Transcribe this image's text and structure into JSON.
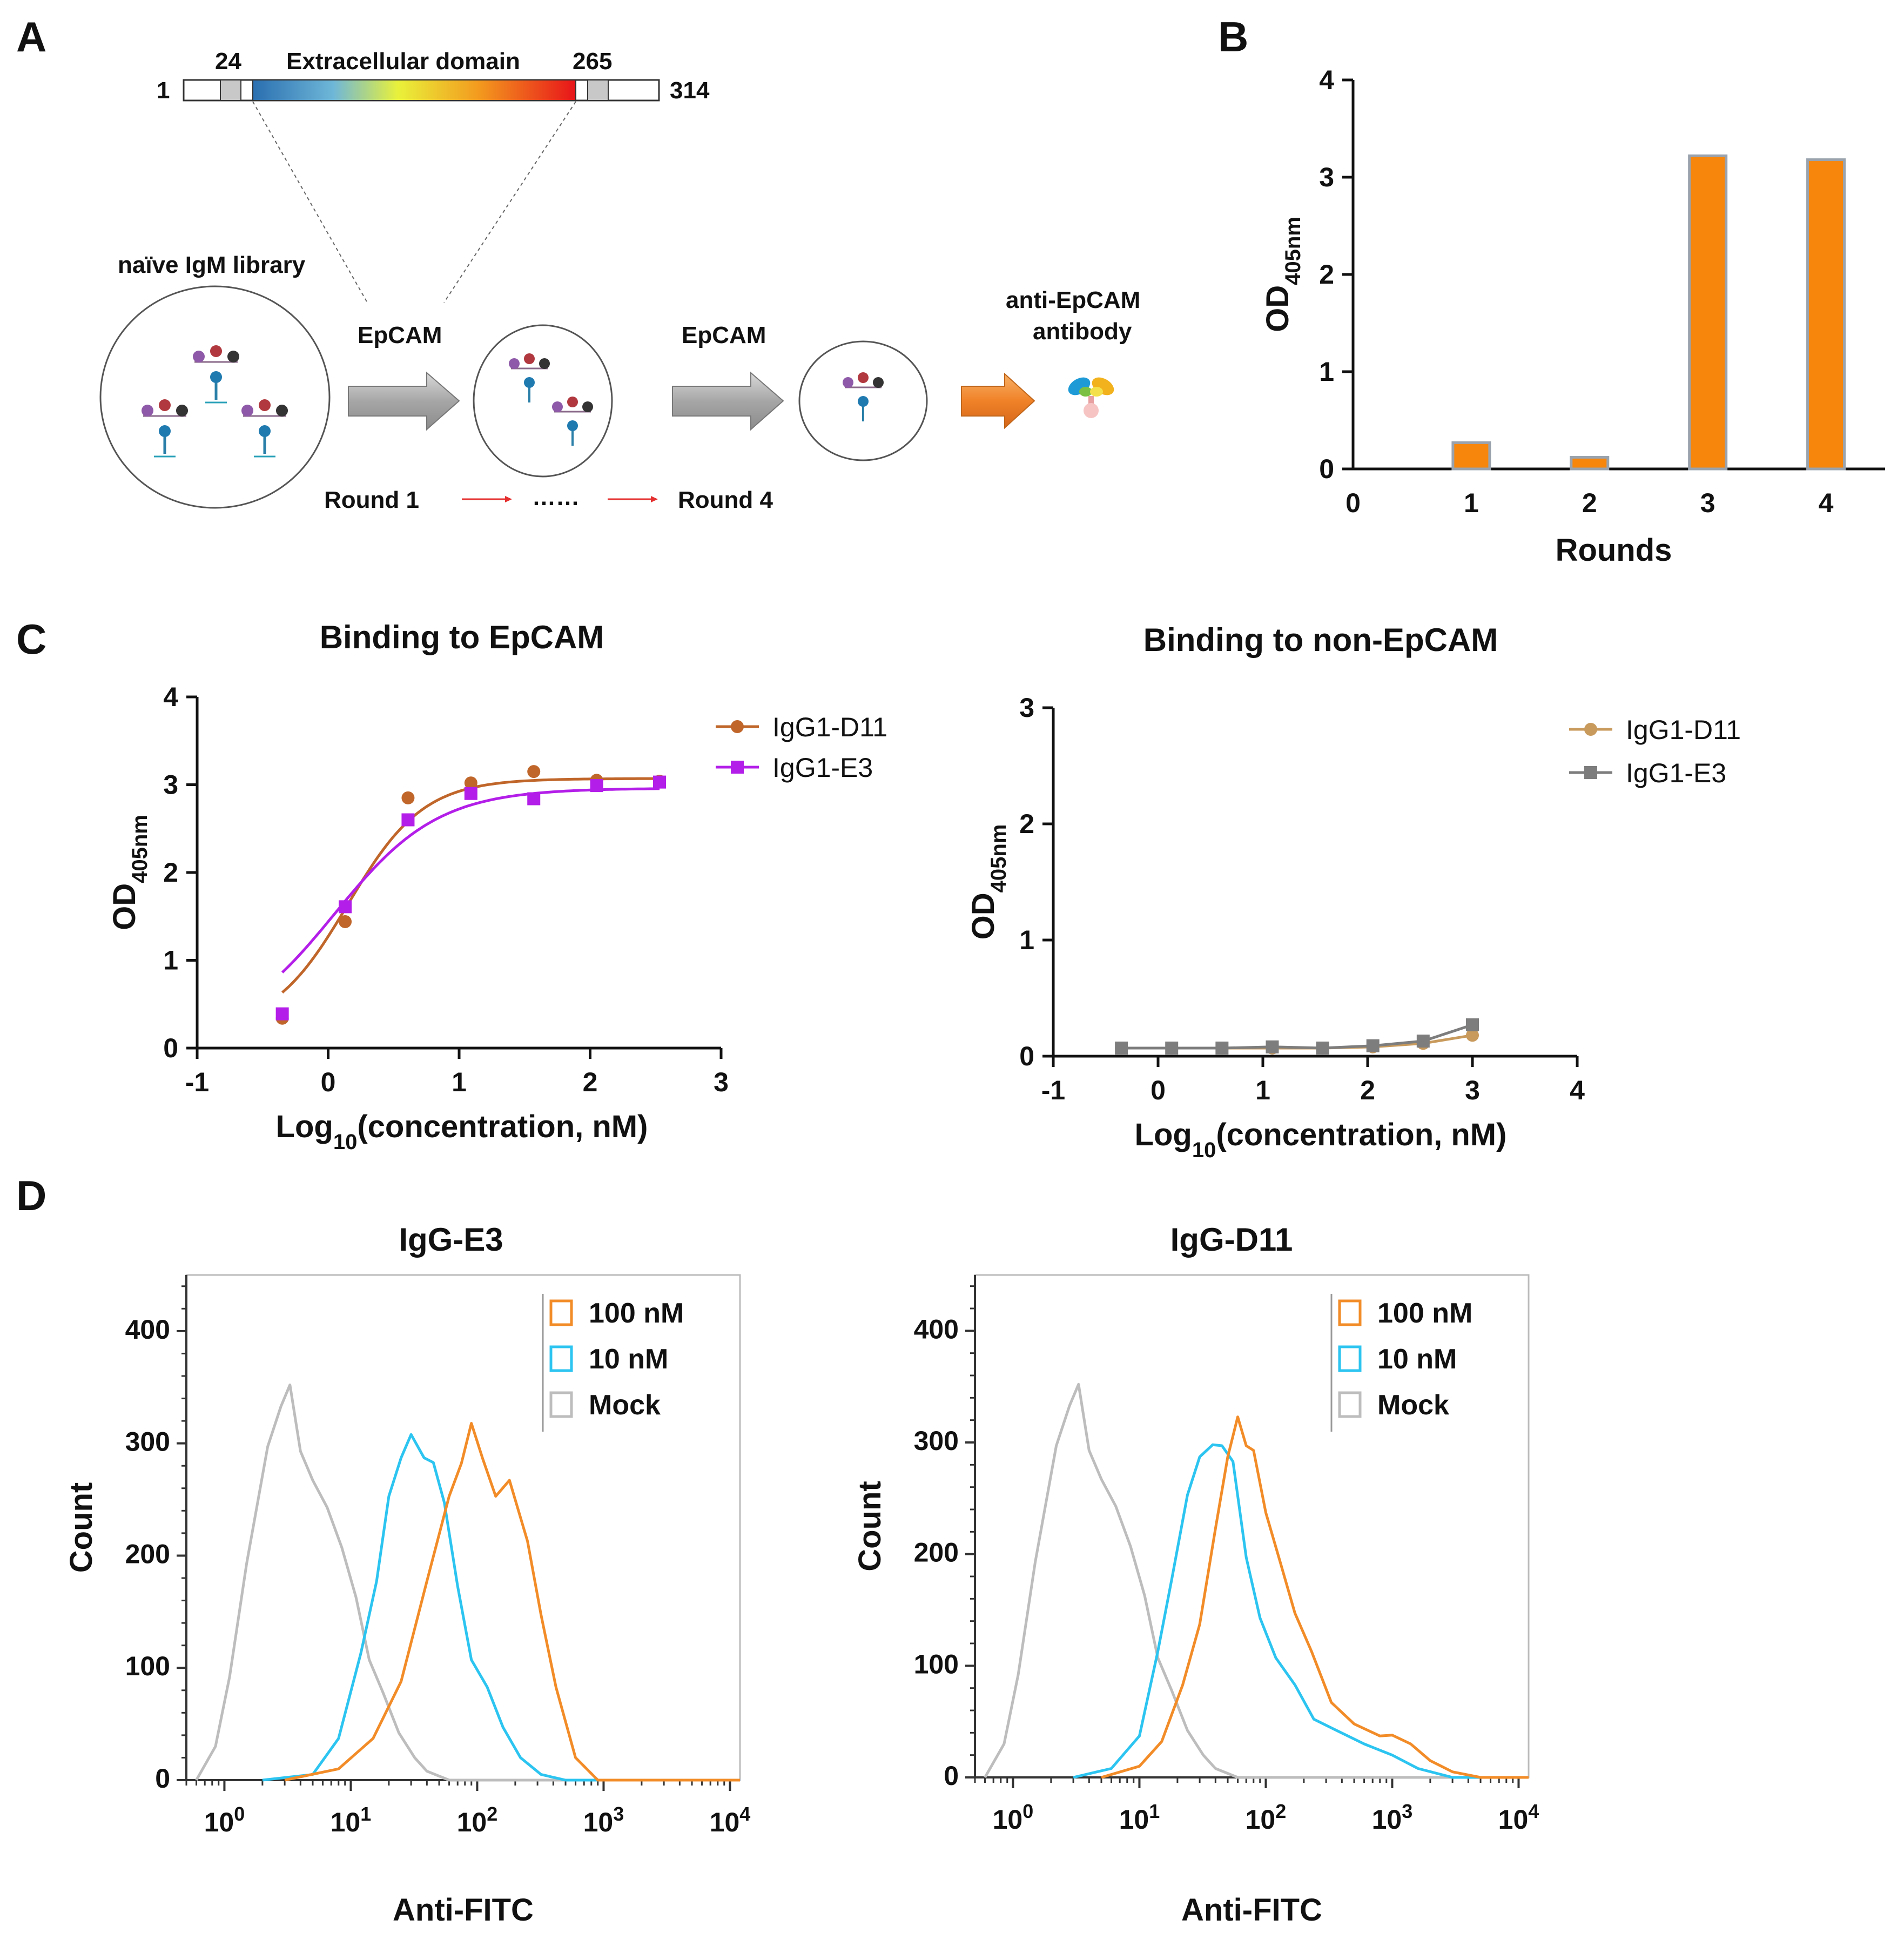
{
  "panels": {
    "A": {
      "label": "A",
      "pos_start": "1",
      "pos_24": "24",
      "domain_label": "Extracellular domain",
      "pos_265": "265",
      "pos_end": "314",
      "library_label": "naïve IgM library",
      "arrow1_label": "EpCAM",
      "arrow2_label": "EpCAM",
      "product_label_1": "anti-EpCAM",
      "product_label_2": "antibody",
      "round_start": "Round 1",
      "round_dots": "……",
      "round_end": "Round 4"
    },
    "B": {
      "label": "B"
    },
    "C": {
      "label": "C"
    },
    "D": {
      "label": "D"
    }
  },
  "chart_data": [
    {
      "id": "B",
      "type": "bar",
      "title": "",
      "xlabel": "Rounds",
      "ylabel": "OD",
      "ylabel_sub": "405nm",
      "x_ticks": [
        "0",
        "1",
        "2",
        "3",
        "4"
      ],
      "y_ticks": [
        "0",
        "1",
        "2",
        "3",
        "4"
      ],
      "xlim": [
        0,
        4.5
      ],
      "ylim": [
        0,
        4
      ],
      "categories": [
        1,
        2,
        3,
        4
      ],
      "values": [
        0.27,
        0.12,
        3.22,
        3.18
      ],
      "color": "#F7860C",
      "edge_color": "#9AA3AD"
    },
    {
      "id": "C-left",
      "type": "scatter",
      "title": "Binding to EpCAM",
      "xlabel": "Log",
      "xlabel_sub": "10",
      "xlabel_rest": "(concentration, nM)",
      "ylabel": "OD",
      "ylabel_sub": "405nm",
      "xlim": [
        -1,
        3
      ],
      "ylim": [
        0,
        4
      ],
      "x_ticks": [
        "-1",
        "0",
        "1",
        "2",
        "3"
      ],
      "y_ticks": [
        "0",
        "1",
        "2",
        "3",
        "4"
      ],
      "series": [
        {
          "name": "IgG1-D11",
          "marker": "circle",
          "color": "#C0662A",
          "x": [
            -0.35,
            0.13,
            0.61,
            1.09,
            1.57,
            2.05,
            2.53
          ],
          "y": [
            0.34,
            1.44,
            2.85,
            3.02,
            3.15,
            3.05,
            3.04
          ],
          "fit": {
            "bottom": 0.2,
            "top": 3.07,
            "logec50": 0.15,
            "hill": 1.5
          }
        },
        {
          "name": "IgG1-E3",
          "marker": "square",
          "color": "#B31EE8",
          "x": [
            -0.35,
            0.13,
            0.61,
            1.09,
            1.57,
            2.05,
            2.53
          ],
          "y": [
            0.39,
            1.61,
            2.6,
            2.9,
            2.84,
            2.99,
            3.03
          ],
          "fit": {
            "bottom": 0.1,
            "top": 2.96,
            "logec50": 0.05,
            "hill": 1.1
          }
        }
      ]
    },
    {
      "id": "C-right",
      "type": "line",
      "title": "Binding to non-EpCAM",
      "xlabel": "Log",
      "xlabel_sub": "10",
      "xlabel_rest": "(concentration, nM)",
      "ylabel": "OD",
      "ylabel_sub": "405nm",
      "xlim": [
        -1,
        4
      ],
      "ylim": [
        0,
        3
      ],
      "x_ticks": [
        "-1",
        "0",
        "1",
        "2",
        "3",
        "4"
      ],
      "y_ticks": [
        "0",
        "1",
        "2",
        "3"
      ],
      "series": [
        {
          "name": "IgG1-D11",
          "marker": "circle",
          "color": "#C89A5C",
          "x": [
            -0.35,
            0.13,
            0.61,
            1.09,
            1.57,
            2.05,
            2.53,
            3.0
          ],
          "y": [
            0.07,
            0.07,
            0.07,
            0.07,
            0.07,
            0.08,
            0.11,
            0.18
          ]
        },
        {
          "name": "IgG1-E3",
          "marker": "square",
          "color": "#7D7D7D",
          "x": [
            -0.35,
            0.13,
            0.61,
            1.09,
            1.57,
            2.05,
            2.53,
            3.0
          ],
          "y": [
            0.07,
            0.07,
            0.07,
            0.08,
            0.07,
            0.09,
            0.13,
            0.27
          ]
        }
      ]
    },
    {
      "id": "D-left",
      "type": "area",
      "title": "IgG-E3",
      "xlabel": "Anti-FITC",
      "ylabel": "Count",
      "xscale": "log",
      "xlim": [
        0.5,
        12000
      ],
      "ylim": [
        0,
        450
      ],
      "x_ticks": [
        {
          "base": "10",
          "exp": "0"
        },
        {
          "base": "10",
          "exp": "1"
        },
        {
          "base": "10",
          "exp": "2"
        },
        {
          "base": "10",
          "exp": "3"
        },
        {
          "base": "10",
          "exp": "4"
        }
      ],
      "y_ticks": [
        "0",
        "100",
        "200",
        "300",
        "400"
      ],
      "series": [
        {
          "name": "100 nM",
          "color": "#F28C28",
          "x": [
            3,
            8,
            15,
            25,
            40,
            60,
            75,
            90,
            110,
            140,
            180,
            250,
            320,
            420,
            600,
            900,
            12000
          ],
          "y": [
            0,
            10,
            40,
            85,
            180,
            250,
            285,
            315,
            290,
            250,
            270,
            210,
            150,
            80,
            20,
            0,
            0
          ]
        },
        {
          "name": "10 nM",
          "color": "#2CC4F0",
          "x": [
            2,
            5,
            8,
            12,
            16,
            20,
            25,
            30,
            38,
            45,
            55,
            70,
            90,
            120,
            160,
            220,
            320,
            500,
            12000
          ],
          "y": [
            0,
            5,
            40,
            110,
            180,
            250,
            290,
            305,
            290,
            280,
            250,
            170,
            110,
            80,
            50,
            20,
            5,
            0,
            0
          ]
        },
        {
          "name": "Mock",
          "color": "#BDBDBD",
          "x": [
            0.6,
            0.85,
            1.1,
            1.5,
            2.2,
            2.8,
            3.3,
            4,
            5,
            6.5,
            8.5,
            11,
            14,
            18,
            24,
            32,
            40,
            60,
            12000
          ],
          "y": [
            0,
            30,
            95,
            190,
            300,
            330,
            355,
            290,
            270,
            240,
            210,
            160,
            110,
            75,
            45,
            20,
            8,
            0,
            0
          ]
        }
      ],
      "legend_title": ""
    },
    {
      "id": "D-right",
      "type": "area",
      "title": "IgG-D11",
      "xlabel": "Anti-FITC",
      "ylabel": "Count",
      "xscale": "log",
      "xlim": [
        0.5,
        12000
      ],
      "ylim": [
        0,
        450
      ],
      "x_ticks": [
        {
          "base": "10",
          "exp": "0"
        },
        {
          "base": "10",
          "exp": "1"
        },
        {
          "base": "10",
          "exp": "2"
        },
        {
          "base": "10",
          "exp": "3"
        },
        {
          "base": "10",
          "exp": "4"
        }
      ],
      "y_ticks": [
        "0",
        "100",
        "200",
        "300",
        "400"
      ],
      "series": [
        {
          "name": "100 nM",
          "color": "#F28C28",
          "x": [
            5,
            10,
            15,
            22,
            30,
            40,
            50,
            60,
            70,
            80,
            100,
            130,
            170,
            230,
            330,
            500,
            800,
            1000,
            1400,
            2000,
            3000,
            5000,
            12000
          ],
          "y": [
            0,
            10,
            35,
            80,
            140,
            220,
            290,
            320,
            300,
            290,
            240,
            190,
            150,
            110,
            70,
            45,
            40,
            35,
            30,
            15,
            5,
            0,
            0
          ]
        },
        {
          "name": "10 nM",
          "color": "#2CC4F0",
          "x": [
            3,
            6,
            10,
            14,
            18,
            24,
            30,
            38,
            45,
            55,
            70,
            90,
            120,
            170,
            240,
            350,
            600,
            1000,
            1600,
            3000,
            12000
          ],
          "y": [
            0,
            8,
            40,
            110,
            180,
            250,
            290,
            295,
            300,
            280,
            200,
            140,
            110,
            80,
            55,
            40,
            30,
            20,
            8,
            0,
            0
          ]
        },
        {
          "name": "Mock",
          "color": "#BDBDBD",
          "x": [
            0.6,
            0.85,
            1.1,
            1.5,
            2.2,
            2.8,
            3.3,
            4,
            5,
            6.5,
            8.5,
            11,
            14,
            18,
            24,
            32,
            40,
            60,
            12000
          ],
          "y": [
            0,
            30,
            95,
            190,
            300,
            330,
            355,
            290,
            270,
            240,
            210,
            160,
            110,
            75,
            45,
            20,
            8,
            0,
            0
          ]
        }
      ]
    }
  ]
}
